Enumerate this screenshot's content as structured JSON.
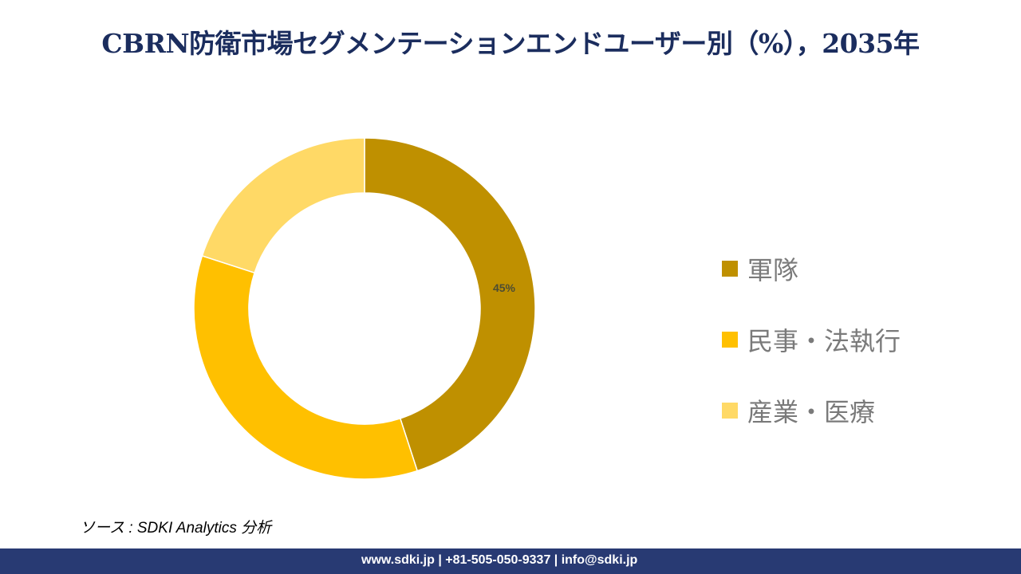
{
  "title": "CBRN防衛市場セグメンテーションエンドユーザー別（%），2035年",
  "chart_data": {
    "type": "pie",
    "donut": true,
    "title": "CBRN防衛市場セグメンテーションエンドユーザー別（%），2035年",
    "categories": [
      "軍隊",
      "民事・法執行",
      "産業・医療"
    ],
    "values": [
      45,
      35,
      20
    ],
    "data_labels": [
      "45%",
      "",
      ""
    ],
    "colors": [
      "#BF9000",
      "#FFC000",
      "#FFD966"
    ],
    "legend_position": "right"
  },
  "source": "ソース : SDKI Analytics 分析",
  "footer": "www.sdki.jp | +81-505-050-9337 | info@sdki.jp"
}
